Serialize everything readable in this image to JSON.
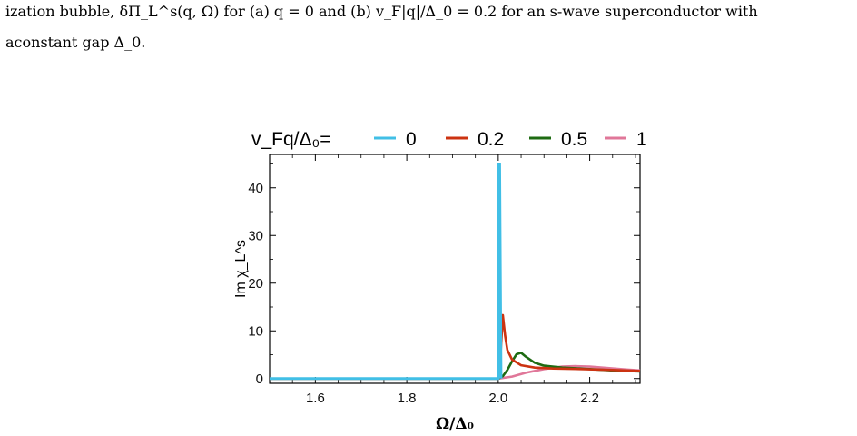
{
  "caption": {
    "line1": "ization bubble, δΠ_L^s(q, Ω) for (a) q = 0 and (b) v_F|q|/Δ_0 = 0.2 for an s-wave superconductor with",
    "line2": "aconstant gap Δ_0."
  },
  "chart_data": {
    "type": "line",
    "title": "",
    "xlabel": "Ω/Δ₀",
    "ylabel": "Im χ_L^s",
    "xlim": [
      1.5,
      2.31
    ],
    "ylim": [
      -1,
      47
    ],
    "x_ticks": [
      "1.6",
      "1.8",
      "2.0",
      "2.2"
    ],
    "y_ticks": [
      "0",
      "10",
      "20",
      "30",
      "40"
    ],
    "grid": false,
    "legend": {
      "placement": "top",
      "title": "v_Fq/Δ₀="
    },
    "series": [
      {
        "name": "0",
        "color": "#41bfe6",
        "x": [
          1.5,
          1.99,
          2.0,
          2.0,
          2.003,
          2.006
        ],
        "y": [
          0,
          0,
          0,
          45,
          45,
          0
        ]
      },
      {
        "name": "0.2",
        "color": "#cc3311",
        "x": [
          1.5,
          2.0,
          2.005,
          2.01,
          2.015,
          2.02,
          2.03,
          2.05,
          2.08,
          2.12,
          2.18,
          2.25,
          2.31
        ],
        "y": [
          0,
          0,
          5,
          13.3,
          9,
          6,
          4,
          2.8,
          2.3,
          2.1,
          2.0,
          1.8,
          1.6
        ]
      },
      {
        "name": "0.5",
        "color": "#1e6b12",
        "x": [
          1.5,
          2.0,
          2.01,
          2.02,
          2.03,
          2.04,
          2.05,
          2.06,
          2.08,
          2.1,
          2.14,
          2.2,
          2.25,
          2.31
        ],
        "y": [
          0,
          0,
          0.5,
          1.8,
          3.6,
          5.1,
          5.4,
          4.6,
          3.3,
          2.7,
          2.3,
          2.0,
          1.7,
          1.5
        ]
      },
      {
        "name": "1",
        "color": "#e07799",
        "x": [
          1.5,
          2.0,
          2.03,
          2.06,
          2.1,
          2.14,
          2.17,
          2.2,
          2.24,
          2.28,
          2.31
        ],
        "y": [
          0,
          0,
          0.4,
          1.2,
          2.0,
          2.5,
          2.6,
          2.5,
          2.2,
          1.9,
          1.7
        ]
      }
    ]
  }
}
